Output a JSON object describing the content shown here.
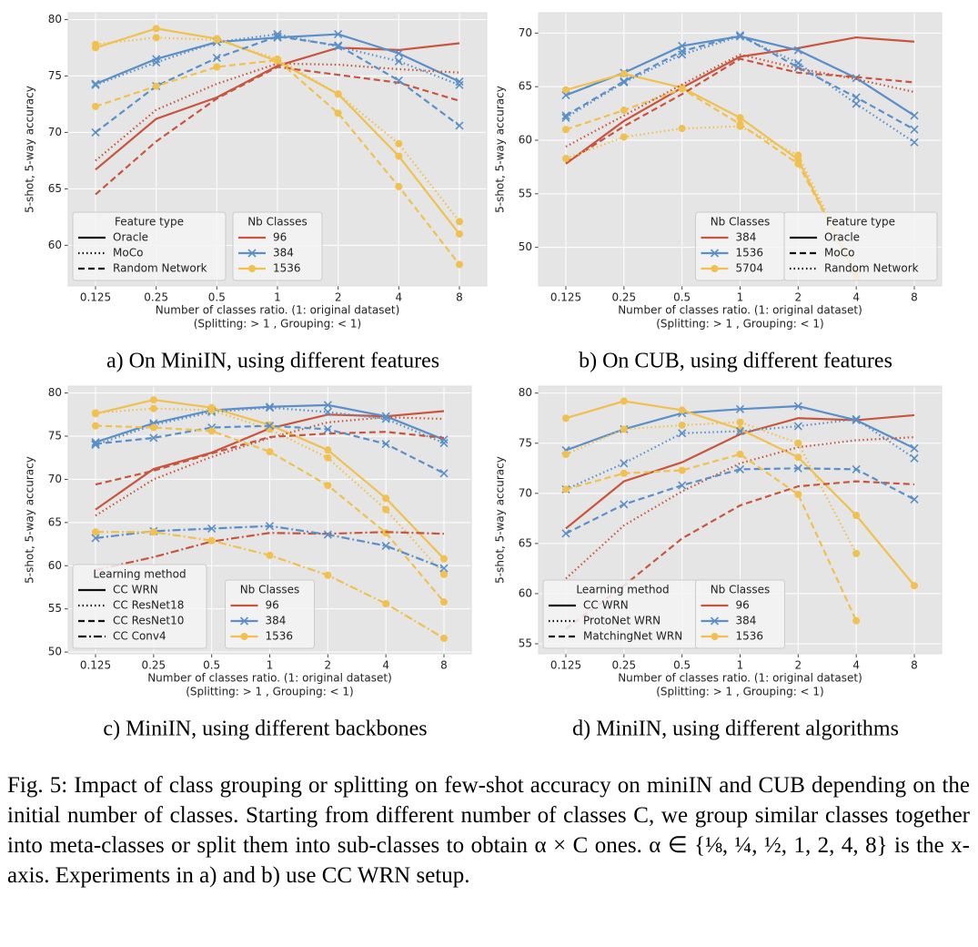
{
  "chart_data": [
    {
      "type": "line",
      "caption": "a) On MiniIN, using different features",
      "xlabel": [
        "Number of classes ratio. (1: original dataset)",
        "(Splitting: > 1 , Grouping: < 1)"
      ],
      "ylabel": "5-shot, 5-way accuracy",
      "categories": [
        "0.125",
        "0.25",
        "0.5",
        "1",
        "2",
        "4",
        "8"
      ],
      "ylim": [
        56.4,
        80.6
      ],
      "yticks": [
        60,
        65,
        70,
        75,
        80
      ],
      "grid": true,
      "legends": [
        {
          "title": "Feature type",
          "loc": "lower left",
          "entries": [
            {
              "label": "Oracle",
              "dash": "solid"
            },
            {
              "label": "MoCo",
              "dash": "dotted"
            },
            {
              "label": "Random Network",
              "dash": "dashed"
            }
          ]
        },
        {
          "title": "Nb Classes",
          "loc": "lower center",
          "entries": [
            {
              "label": "96",
              "color": "#c8553d",
              "marker": "none"
            },
            {
              "label": "384",
              "color": "#5b8fc8",
              "marker": "x"
            },
            {
              "label": "1536",
              "color": "#f0c050",
              "marker": "o"
            }
          ]
        }
      ],
      "series": [
        {
          "dash": "solid",
          "color": "#c8553d",
          "marker": "none",
          "values": [
            66.7,
            71.2,
            73.1,
            75.9,
            77.5,
            77.3,
            77.9
          ]
        },
        {
          "dash": "solid",
          "color": "#5b8fc8",
          "marker": "x",
          "values": [
            74.3,
            76.5,
            78.0,
            78.4,
            78.7,
            77.0,
            74.5
          ]
        },
        {
          "dash": "solid",
          "color": "#f0c050",
          "marker": "o",
          "values": [
            77.5,
            79.2,
            78.3,
            76.3,
            73.4,
            67.9,
            61.0
          ]
        },
        {
          "dash": "dotted",
          "color": "#c8553d",
          "marker": "none",
          "values": [
            67.5,
            72.0,
            74.3,
            76.1,
            76.0,
            75.6,
            75.3
          ]
        },
        {
          "dash": "dotted",
          "color": "#5b8fc8",
          "marker": "x",
          "values": [
            74.2,
            76.2,
            78.0,
            78.7,
            77.6,
            76.3,
            74.2
          ]
        },
        {
          "dash": "dotted",
          "color": "#f0c050",
          "marker": "o",
          "values": [
            77.8,
            78.4,
            78.2,
            76.5,
            73.4,
            69.0,
            62.1
          ]
        },
        {
          "dash": "dashed",
          "color": "#c8553d",
          "marker": "none",
          "values": [
            64.5,
            69.2,
            73.0,
            75.8,
            75.1,
            74.4,
            72.8
          ]
        },
        {
          "dash": "dashed",
          "color": "#5b8fc8",
          "marker": "x",
          "values": [
            70.0,
            74.1,
            76.6,
            78.5,
            77.7,
            74.6,
            70.6
          ]
        },
        {
          "dash": "dashed",
          "color": "#f0c050",
          "marker": "o",
          "values": [
            72.3,
            74.1,
            75.8,
            76.4,
            71.7,
            65.2,
            58.3
          ]
        }
      ]
    },
    {
      "type": "line",
      "caption": "b) On CUB, using different features",
      "xlabel": [
        "Number of classes ratio. (1: original dataset)",
        "(Splitting: > 1 , Grouping: < 1)"
      ],
      "ylabel": "5-shot, 5-way accuracy",
      "categories": [
        "0.125",
        "0.25",
        "0.5",
        "1",
        "2",
        "4",
        "8"
      ],
      "ylim": [
        46.4,
        71.9
      ],
      "yticks": [
        50,
        55,
        60,
        65,
        70
      ],
      "grid": true,
      "legends": [
        {
          "title": "Nb Classes",
          "loc": "lower center",
          "entries": [
            {
              "label": "384",
              "color": "#c8553d",
              "marker": "none"
            },
            {
              "label": "1536",
              "color": "#5b8fc8",
              "marker": "x"
            },
            {
              "label": "5704",
              "color": "#f0c050",
              "marker": "o"
            }
          ]
        },
        {
          "title": "Feature type",
          "loc": "lower right",
          "entries": [
            {
              "label": "Oracle",
              "dash": "solid"
            },
            {
              "label": "MoCo",
              "dash": "dashed"
            },
            {
              "label": "Random Network",
              "dash": "dotted"
            }
          ]
        }
      ],
      "series": [
        {
          "dash": "solid",
          "color": "#c8553d",
          "marker": "none",
          "values": [
            57.8,
            61.8,
            64.9,
            67.8,
            68.6,
            69.6,
            69.2
          ]
        },
        {
          "dash": "solid",
          "color": "#5b8fc8",
          "marker": "x",
          "values": [
            64.2,
            66.3,
            68.8,
            69.7,
            68.4,
            65.8,
            62.3
          ]
        },
        {
          "dash": "solid",
          "color": "#f0c050",
          "marker": "o",
          "values": [
            64.7,
            66.2,
            64.9,
            62.1,
            58.2,
            47.2,
            null
          ]
        },
        {
          "dash": "dashed",
          "color": "#c8553d",
          "marker": "none",
          "values": [
            57.9,
            61.3,
            64.3,
            67.6,
            66.3,
            65.9,
            65.4
          ]
        },
        {
          "dash": "dashed",
          "color": "#5b8fc8",
          "marker": "x",
          "values": [
            62.3,
            65.5,
            68.3,
            69.8,
            66.8,
            64.0,
            61.0
          ]
        },
        {
          "dash": "dashed",
          "color": "#f0c050",
          "marker": "o",
          "values": [
            61.0,
            62.8,
            64.8,
            61.5,
            57.8,
            47.5,
            null
          ]
        },
        {
          "dash": "dotted",
          "color": "#c8553d",
          "marker": "none",
          "values": [
            59.4,
            62.3,
            65.2,
            68.0,
            66.7,
            65.7,
            64.5
          ]
        },
        {
          "dash": "dotted",
          "color": "#5b8fc8",
          "marker": "x",
          "values": [
            62.1,
            65.4,
            68.0,
            69.7,
            67.2,
            63.4,
            59.8
          ]
        },
        {
          "dash": "dotted",
          "color": "#f0c050",
          "marker": "o",
          "values": [
            58.3,
            60.3,
            61.1,
            61.3,
            58.6,
            47.6,
            null
          ]
        }
      ]
    },
    {
      "type": "line",
      "caption": "c) MiniIN, using different backbones",
      "xlabel": [
        "Number of classes ratio. (1: original dataset)",
        "(Splitting: > 1 , Grouping: < 1)"
      ],
      "ylabel": "5-shot, 5-way accuracy",
      "categories": [
        "0.125",
        "0.25",
        "0.5",
        "1",
        "2",
        "4",
        "8"
      ],
      "ylim": [
        49.8,
        80.8
      ],
      "yticks": [
        50,
        55,
        60,
        65,
        70,
        75,
        80
      ],
      "grid": true,
      "legends": [
        {
          "title": "Learning method",
          "loc": "lower left",
          "entries": [
            {
              "label": "CC WRN",
              "dash": "solid"
            },
            {
              "label": "CC ResNet18",
              "dash": "dotted"
            },
            {
              "label": "CC ResNet10",
              "dash": "dashed"
            },
            {
              "label": "CC Conv4",
              "dash": "dashdot"
            }
          ]
        },
        {
          "title": "Nb Classes",
          "loc": "lower center",
          "entries": [
            {
              "label": "96",
              "color": "#c8553d",
              "marker": "none"
            },
            {
              "label": "384",
              "color": "#5b8fc8",
              "marker": "x"
            },
            {
              "label": "1536",
              "color": "#f0c050",
              "marker": "o"
            }
          ]
        }
      ],
      "series": [
        {
          "dash": "solid",
          "color": "#c8553d",
          "marker": "none",
          "values": [
            66.5,
            71.2,
            73.1,
            75.9,
            77.5,
            77.3,
            77.9
          ]
        },
        {
          "dash": "solid",
          "color": "#5b8fc8",
          "marker": "x",
          "values": [
            74.3,
            76.5,
            78.0,
            78.4,
            78.6,
            77.3,
            74.6
          ]
        },
        {
          "dash": "solid",
          "color": "#f0c050",
          "marker": "o",
          "values": [
            77.6,
            79.2,
            78.3,
            76.3,
            73.4,
            67.8,
            60.8
          ]
        },
        {
          "dash": "dotted",
          "color": "#c8553d",
          "marker": "none",
          "values": [
            65.8,
            70.0,
            72.6,
            74.8,
            76.6,
            77.2,
            77.0
          ]
        },
        {
          "dash": "dotted",
          "color": "#5b8fc8",
          "marker": "x",
          "values": [
            74.0,
            76.3,
            77.8,
            78.3,
            77.8,
            77.0,
            74.2
          ]
        },
        {
          "dash": "dotted",
          "color": "#f0c050",
          "marker": "o",
          "values": [
            77.7,
            78.2,
            78.0,
            75.8,
            72.5,
            66.5,
            59.0
          ]
        },
        {
          "dash": "dashed",
          "color": "#c8553d",
          "marker": "none",
          "values": [
            69.4,
            71.0,
            73.0,
            74.9,
            75.3,
            75.5,
            74.8
          ]
        },
        {
          "dash": "dashed",
          "color": "#5b8fc8",
          "marker": "x",
          "values": [
            74.1,
            74.8,
            76.0,
            76.2,
            75.8,
            74.1,
            70.7
          ]
        },
        {
          "dash": "dashed",
          "color": "#f0c050",
          "marker": "o",
          "values": [
            76.2,
            76.0,
            75.6,
            73.2,
            69.3,
            63.8,
            55.8
          ]
        },
        {
          "dash": "dashdot",
          "color": "#c8553d",
          "marker": "none",
          "values": [
            59.5,
            61.0,
            62.8,
            63.8,
            63.7,
            63.9,
            63.7
          ]
        },
        {
          "dash": "dashdot",
          "color": "#5b8fc8",
          "marker": "x",
          "values": [
            63.2,
            64.0,
            64.3,
            64.6,
            63.6,
            62.3,
            59.7
          ]
        },
        {
          "dash": "dashdot",
          "color": "#f0c050",
          "marker": "o",
          "values": [
            63.9,
            63.9,
            62.9,
            61.2,
            58.9,
            55.6,
            51.6
          ]
        }
      ]
    },
    {
      "type": "line",
      "caption": "d) MiniIN, using different algorithms",
      "xlabel": [
        "Number of classes ratio. (1: original dataset)",
        "(Splitting: > 1 , Grouping: < 1)"
      ],
      "ylabel": "5-shot, 5-way accuracy",
      "categories": [
        "0.125",
        "0.25",
        "0.5",
        "1",
        "2",
        "4",
        "8"
      ],
      "ylim": [
        54.0,
        80.7
      ],
      "yticks": [
        55,
        60,
        65,
        70,
        75,
        80
      ],
      "grid": true,
      "legends": [
        {
          "title": "Learning method",
          "loc": "lower left",
          "entries": [
            {
              "label": "CC WRN",
              "dash": "solid"
            },
            {
              "label": "ProtoNet WRN",
              "dash": "dotted"
            },
            {
              "label": "MatchingNet WRN",
              "dash": "dashed"
            }
          ]
        },
        {
          "title": "Nb Classes",
          "loc": "lower center",
          "entries": [
            {
              "label": "96",
              "color": "#c8553d",
              "marker": "none"
            },
            {
              "label": "384",
              "color": "#5b8fc8",
              "marker": "x"
            },
            {
              "label": "1536",
              "color": "#f0c050",
              "marker": "o"
            }
          ]
        }
      ],
      "series": [
        {
          "dash": "solid",
          "color": "#c8553d",
          "marker": "none",
          "values": [
            66.5,
            71.2,
            73.1,
            75.9,
            77.5,
            77.3,
            77.8
          ]
        },
        {
          "dash": "solid",
          "color": "#5b8fc8",
          "marker": "x",
          "values": [
            74.3,
            76.4,
            78.0,
            78.4,
            78.7,
            77.3,
            74.5
          ]
        },
        {
          "dash": "solid",
          "color": "#f0c050",
          "marker": "o",
          "values": [
            77.5,
            79.2,
            78.3,
            76.4,
            73.6,
            67.8,
            60.8
          ]
        },
        {
          "dash": "dotted",
          "color": "#c8553d",
          "marker": "none",
          "values": [
            61.5,
            66.8,
            70.2,
            73.0,
            74.6,
            75.3,
            75.6
          ]
        },
        {
          "dash": "dotted",
          "color": "#5b8fc8",
          "marker": "x",
          "values": [
            70.4,
            73.0,
            76.0,
            76.2,
            76.7,
            77.4,
            73.5
          ]
        },
        {
          "dash": "dotted",
          "color": "#f0c050",
          "marker": "o",
          "values": [
            73.9,
            76.4,
            76.8,
            77.1,
            75.0,
            64.0,
            null
          ]
        },
        {
          "dash": "dashed",
          "color": "#c8553d",
          "marker": "none",
          "values": [
            56.5,
            60.8,
            65.5,
            68.8,
            70.7,
            71.2,
            70.9
          ]
        },
        {
          "dash": "dashed",
          "color": "#5b8fc8",
          "marker": "x",
          "values": [
            66.0,
            68.9,
            70.8,
            72.4,
            72.5,
            72.4,
            69.4
          ]
        },
        {
          "dash": "dashed",
          "color": "#f0c050",
          "marker": "o",
          "values": [
            70.4,
            72.0,
            72.3,
            73.9,
            69.9,
            57.3,
            null
          ]
        }
      ]
    }
  ],
  "caption": "Fig. 5: Impact of class grouping or splitting on few-shot accuracy on miniIN and CUB depending on the initial number of classes. Starting from different number of classes C, we group similar classes together into meta-classes or split them into sub-classes to obtain α × C ones. α ∈ {⅛, ¼, ½, 1, 2, 4, 8} is the x-axis. Experiments in a) and b) use CC WRN setup."
}
